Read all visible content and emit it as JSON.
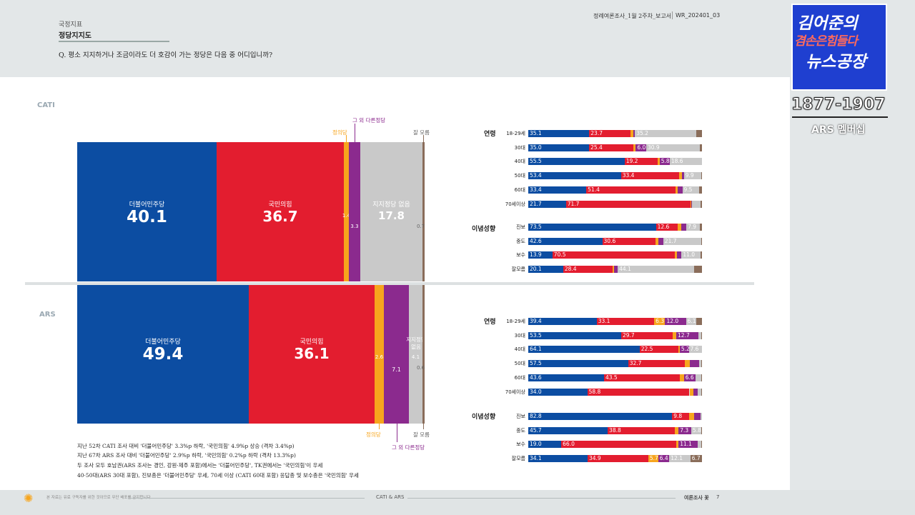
{
  "header": {
    "category": "국정지표",
    "section_title": "정당지지도",
    "question": "Q. 평소 지지하거나 조금이라도 더 호감이 가는 정당은 다음 중 어디입니까?",
    "report_title": "정례여론조사_1월 2주차_보고서",
    "report_code": "WR_202401_03"
  },
  "logo": {
    "line1": "김어준의",
    "line2": "겸손은힘들다",
    "line3": "뉴스공장",
    "range": "1877-1907",
    "sub": "ARS 멤버십"
  },
  "colors": {
    "democratic": "#0c4da2",
    "ppp": "#e31d2f",
    "justice": "#f7a51d",
    "other": "#8b2a8e",
    "none": "#c9c9c9",
    "dontknow": "#8a6d5a"
  },
  "cati": {
    "label": "CATI",
    "top_labels": {
      "justice": "정의당",
      "other": "그 외 다른정당",
      "dontknow": "잘 모름"
    },
    "segments": [
      {
        "name": "더불어민주당",
        "value": "40.1"
      },
      {
        "name": "국민의힘",
        "value": "36.7"
      },
      {
        "name": "",
        "value": "1.4"
      },
      {
        "name": "",
        "value": "3.3"
      },
      {
        "name": "지지정당 없음",
        "value": "17.8"
      },
      {
        "name": "",
        "value": "0.7"
      }
    ]
  },
  "ars": {
    "label": "ARS",
    "bottom_labels": {
      "justice": "정의당",
      "other": "그 외 다른정당",
      "dontknow": "잘 모름"
    },
    "segments": [
      {
        "name": "더불어민주당",
        "value": "49.4"
      },
      {
        "name": "국민의힘",
        "value": "36.1"
      },
      {
        "name": "",
        "value": "2.6"
      },
      {
        "name": "",
        "value": "7.1"
      },
      {
        "name": "지지정당 없음",
        "value": "4.1"
      },
      {
        "name": "",
        "value": "0.6"
      }
    ]
  },
  "notes": [
    "지난 52차 CATI 조사 대비 '더불어민주당' 3.3%p 하락, '국민의힘' 4.9%p 상승 (격차 3.4%p)",
    "지난 67차 ARS 조사 대비 '더불어민주당' 2.9%p 하락, '국민의힘' 0.2%p 하락 (격차 13.3%p)",
    "두 조사 모두 호남권(ARS 조사는 경인, 강원·제주 포함)에서는 '더불어민주당', TK권에서는 '국민의힘'이 우세",
    "40·50대(ARS 30대 포함), 진보층은 '더불어민주당' 우세, 70세 이상 (CATI 60대 포함) 응답층 및 보수층은 '국민의힘' 우세"
  ],
  "footer": {
    "left_note": "본 자료는 유료 구독자를 위한 것이므로 무단 배포를 금지합니다",
    "center": "CATI & ARS",
    "right": "여론조사 꽃",
    "page": "7"
  },
  "small_charts": {
    "cati": {
      "age_label": "연령",
      "ideology_label": "이념성향",
      "age_rows": [
        {
          "label": "18-29세",
          "values": [
            35.1,
            23.7,
            1.6,
            1.0,
            35.2,
            3.4
          ],
          "shown": [
            "35.1",
            "23.7",
            "",
            "",
            "35.2",
            ""
          ]
        },
        {
          "label": "30대",
          "values": [
            35.0,
            25.4,
            1.5,
            6.0,
            30.9,
            1.2
          ],
          "shown": [
            "35.0",
            "25.4",
            "",
            "6.0",
            "30.9",
            ""
          ]
        },
        {
          "label": "40대",
          "values": [
            55.5,
            19.2,
            1.0,
            5.8,
            18.6,
            0.0
          ],
          "shown": [
            "55.5",
            "19.2",
            "",
            "5.8",
            "18.6",
            ""
          ]
        },
        {
          "label": "50대",
          "values": [
            53.4,
            33.4,
            1.5,
            1.3,
            9.9,
            0.5
          ],
          "shown": [
            "53.4",
            "33.4",
            "",
            "",
            "9.9",
            ""
          ]
        },
        {
          "label": "60대",
          "values": [
            33.4,
            51.4,
            1.3,
            2.6,
            9.5,
            1.8
          ],
          "shown": [
            "33.4",
            "51.4",
            "",
            "",
            "9.5",
            ""
          ]
        },
        {
          "label": "70세이상",
          "values": [
            21.7,
            71.7,
            0.5,
            0.5,
            4.8,
            0.8
          ],
          "shown": [
            "21.7",
            "71.7",
            "",
            "",
            "",
            ""
          ]
        }
      ],
      "ideology_rows": [
        {
          "label": "진보",
          "values": [
            73.5,
            12.6,
            2.0,
            2.9,
            7.9,
            1.1
          ],
          "shown": [
            "73.5",
            "12.6",
            "",
            "",
            "7.9",
            ""
          ]
        },
        {
          "label": "중도",
          "values": [
            42.6,
            30.6,
            1.5,
            3.0,
            21.7,
            0.6
          ],
          "shown": [
            "42.6",
            "30.6",
            "",
            "",
            "21.7",
            ""
          ]
        },
        {
          "label": "보수",
          "values": [
            13.9,
            70.5,
            1.0,
            2.8,
            11.0,
            0.8
          ],
          "shown": [
            "13.9",
            "70.5",
            "",
            "",
            "11.0",
            ""
          ]
        },
        {
          "label": "잘모름",
          "values": [
            20.1,
            28.4,
            1.0,
            2.0,
            44.1,
            4.4
          ],
          "shown": [
            "20.1",
            "28.4",
            "",
            "",
            "44.1",
            ""
          ]
        }
      ]
    },
    "ars": {
      "age_label": "연령",
      "ideology_label": "이념성향",
      "age_rows": [
        {
          "label": "18-29세",
          "values": [
            39.4,
            33.1,
            6.3,
            12.0,
            6.1,
            3.1
          ],
          "shown": [
            "39.4",
            "33.1",
            "6.3",
            "12.0",
            "6.1",
            ""
          ]
        },
        {
          "label": "30대",
          "values": [
            53.5,
            29.7,
            2.0,
            12.7,
            1.6,
            0.5
          ],
          "shown": [
            "53.5",
            "29.7",
            "",
            "12.7",
            "",
            ""
          ]
        },
        {
          "label": "40대",
          "values": [
            64.1,
            22.5,
            0.6,
            5.2,
            7.6,
            0.0
          ],
          "shown": [
            "64.1",
            "22.5",
            "",
            "5.2",
            "7.6",
            ""
          ]
        },
        {
          "label": "50대",
          "values": [
            57.5,
            32.7,
            3.0,
            5.0,
            1.3,
            0.5
          ],
          "shown": [
            "57.5",
            "32.7",
            "",
            "",
            "",
            ""
          ]
        },
        {
          "label": "60대",
          "values": [
            43.6,
            43.5,
            2.5,
            6.6,
            3.3,
            0.5
          ],
          "shown": [
            "43.6",
            "43.5",
            "",
            "6.6",
            "",
            ""
          ]
        },
        {
          "label": "70세이상",
          "values": [
            34.0,
            58.8,
            2.4,
            2.5,
            1.8,
            0.5
          ],
          "shown": [
            "34.0",
            "58.8",
            "",
            "",
            "",
            ""
          ]
        }
      ],
      "ideology_rows": [
        {
          "label": "진보",
          "values": [
            82.8,
            9.8,
            2.8,
            3.8,
            0.8,
            0.0
          ],
          "shown": [
            "82.8",
            "9.8",
            "",
            "",
            "",
            ""
          ]
        },
        {
          "label": "중도",
          "values": [
            45.7,
            38.8,
            2.0,
            7.3,
            5.8,
            0.4
          ],
          "shown": [
            "45.7",
            "38.8",
            "",
            "7.3",
            "5.8",
            ""
          ]
        },
        {
          "label": "보수",
          "values": [
            19.0,
            66.0,
            1.5,
            11.1,
            2.0,
            0.4
          ],
          "shown": [
            "19.0",
            "66.0",
            "",
            "11.1",
            "",
            ""
          ]
        },
        {
          "label": "잘모름",
          "values": [
            34.1,
            34.9,
            5.7,
            6.4,
            12.1,
            6.7
          ],
          "shown": [
            "34.1",
            "34.9",
            "5.7",
            "6.4",
            "12.1",
            "6.7"
          ]
        }
      ]
    }
  }
}
